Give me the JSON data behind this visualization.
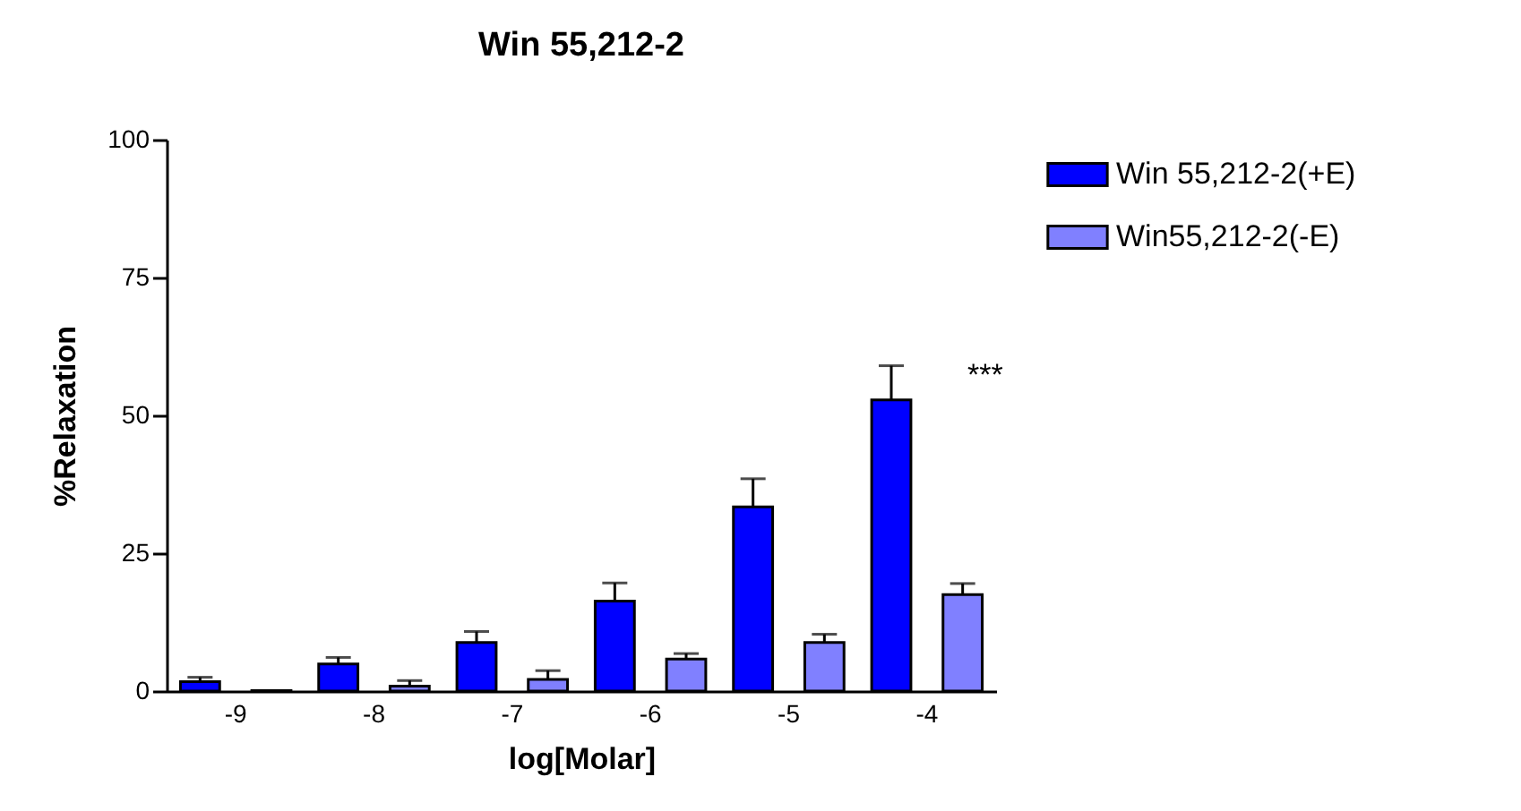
{
  "chart_data": {
    "type": "bar",
    "title": "Win 55,212-2",
    "xlabel": "log[Molar]",
    "ylabel": "%Relaxation",
    "categories": [
      "-9",
      "-8",
      "-7",
      "-6",
      "-5",
      "-4"
    ],
    "series": [
      {
        "name": "Win 55,212-2(+E)",
        "color": "#0000ff",
        "values": [
          1.7,
          4.9,
          8.8,
          16.3,
          33.4,
          52.8
        ],
        "errors": [
          [
            1.7,
            2.5
          ],
          [
            4.9,
            6.1
          ],
          [
            8.8,
            10.8
          ],
          [
            16.3,
            19.6
          ],
          [
            33.4,
            38.5
          ],
          [
            52.8,
            59.0
          ]
        ]
      },
      {
        "name": "Win55,212-2(-E)",
        "color": "#8080ff",
        "values": [
          0.1,
          0.9,
          2.1,
          5.8,
          8.8,
          17.5
        ],
        "errors": [
          null,
          [
            0.9,
            1.9
          ],
          [
            2.1,
            3.7
          ],
          [
            5.8,
            6.8
          ],
          [
            8.8,
            10.3
          ],
          [
            17.5,
            19.5
          ]
        ]
      }
    ],
    "ylim": [
      0,
      100
    ],
    "yticks": [
      0,
      25,
      50,
      75,
      100
    ],
    "grid": false,
    "legend": "top right",
    "annotations": [
      "***"
    ]
  }
}
